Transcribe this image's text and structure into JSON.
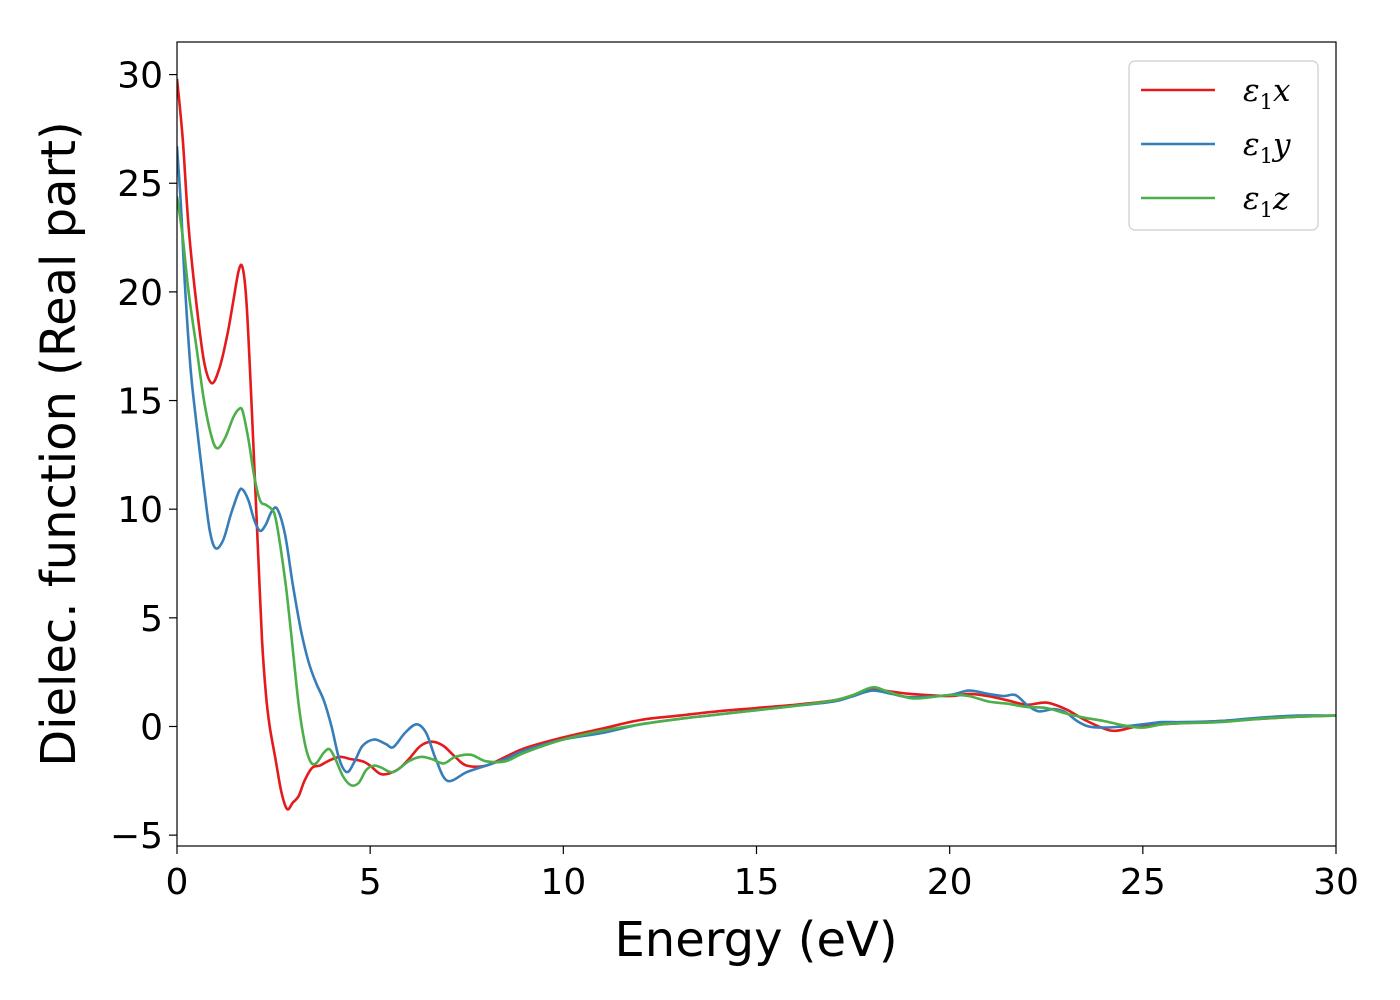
{
  "chart_data": {
    "type": "line",
    "xlabel": "Energy (eV)",
    "ylabel": "Dielec. function (Real part)",
    "xlim": [
      0,
      30
    ],
    "ylim": [
      -5.5,
      31.5
    ],
    "xticks": [
      0,
      5,
      10,
      15,
      20,
      25,
      30
    ],
    "yticks": [
      -5,
      0,
      5,
      10,
      15,
      20,
      25,
      30
    ],
    "xtick_labels": [
      "0",
      "5",
      "10",
      "15",
      "20",
      "25",
      "30"
    ],
    "ytick_labels": [
      "−5",
      "0",
      "5",
      "10",
      "15",
      "20",
      "25",
      "30"
    ],
    "grid": false,
    "legend_position": "top-right",
    "series": [
      {
        "name": "ε₁x",
        "legend": {
          "symbol": "ε",
          "sub": "1",
          "suffix": "x"
        },
        "color": "#e41a1c",
        "points": [
          [
            0,
            29.8
          ],
          [
            0.15,
            27.0
          ],
          [
            0.3,
            23.0
          ],
          [
            0.5,
            19.5
          ],
          [
            0.7,
            16.8
          ],
          [
            0.9,
            15.8
          ],
          [
            1.1,
            16.5
          ],
          [
            1.3,
            18.0
          ],
          [
            1.45,
            19.5
          ],
          [
            1.6,
            21.0
          ],
          [
            1.7,
            21.1
          ],
          [
            1.8,
            19.5
          ],
          [
            1.9,
            16.0
          ],
          [
            2.0,
            12.0
          ],
          [
            2.1,
            8.0
          ],
          [
            2.2,
            4.0
          ],
          [
            2.3,
            1.5
          ],
          [
            2.4,
            0.0
          ],
          [
            2.55,
            -1.5
          ],
          [
            2.7,
            -3.0
          ],
          [
            2.85,
            -3.8
          ],
          [
            3.0,
            -3.5
          ],
          [
            3.15,
            -3.2
          ],
          [
            3.3,
            -2.5
          ],
          [
            3.5,
            -1.9
          ],
          [
            3.7,
            -1.8
          ],
          [
            3.9,
            -1.6
          ],
          [
            4.2,
            -1.4
          ],
          [
            4.5,
            -1.5
          ],
          [
            4.8,
            -1.6
          ],
          [
            5.0,
            -1.8
          ],
          [
            5.3,
            -2.2
          ],
          [
            5.7,
            -2.0
          ],
          [
            6.0,
            -1.5
          ],
          [
            6.3,
            -0.9
          ],
          [
            6.6,
            -0.7
          ],
          [
            6.9,
            -0.9
          ],
          [
            7.2,
            -1.4
          ],
          [
            7.5,
            -1.8
          ],
          [
            8.0,
            -1.8
          ],
          [
            8.5,
            -1.4
          ],
          [
            9.0,
            -1.0
          ],
          [
            10.0,
            -0.5
          ],
          [
            11.0,
            -0.1
          ],
          [
            12.0,
            0.3
          ],
          [
            13.0,
            0.5
          ],
          [
            14.0,
            0.7
          ],
          [
            15.0,
            0.85
          ],
          [
            16.0,
            1.0
          ],
          [
            17.0,
            1.2
          ],
          [
            17.5,
            1.4
          ],
          [
            18.0,
            1.7
          ],
          [
            18.5,
            1.6
          ],
          [
            19.0,
            1.5
          ],
          [
            20.0,
            1.4
          ],
          [
            20.5,
            1.5
          ],
          [
            21.0,
            1.4
          ],
          [
            21.5,
            1.2
          ],
          [
            22.0,
            1.0
          ],
          [
            22.5,
            1.1
          ],
          [
            23.0,
            0.8
          ],
          [
            23.5,
            0.3
          ],
          [
            24.0,
            -0.1
          ],
          [
            24.3,
            -0.2
          ],
          [
            24.7,
            -0.05
          ],
          [
            25.0,
            0.05
          ],
          [
            26.0,
            0.15
          ],
          [
            27.0,
            0.25
          ],
          [
            28.0,
            0.35
          ],
          [
            29.0,
            0.45
          ],
          [
            30.0,
            0.5
          ]
        ]
      },
      {
        "name": "ε₁y",
        "legend": {
          "symbol": "ε",
          "sub": "1",
          "suffix": "y"
        },
        "color": "#377eb8",
        "points": [
          [
            0,
            26.7
          ],
          [
            0.1,
            24.0
          ],
          [
            0.2,
            20.5
          ],
          [
            0.35,
            16.5
          ],
          [
            0.5,
            14.0
          ],
          [
            0.7,
            11.0
          ],
          [
            0.85,
            9.0
          ],
          [
            1.0,
            8.2
          ],
          [
            1.2,
            8.6
          ],
          [
            1.4,
            9.8
          ],
          [
            1.6,
            10.8
          ],
          [
            1.7,
            10.9
          ],
          [
            1.85,
            10.4
          ],
          [
            2.0,
            9.5
          ],
          [
            2.15,
            9.0
          ],
          [
            2.3,
            9.3
          ],
          [
            2.45,
            9.9
          ],
          [
            2.6,
            10.0
          ],
          [
            2.8,
            8.8
          ],
          [
            3.0,
            6.5
          ],
          [
            3.2,
            4.5
          ],
          [
            3.4,
            3.0
          ],
          [
            3.6,
            2.0
          ],
          [
            3.8,
            1.2
          ],
          [
            4.0,
            0.0
          ],
          [
            4.2,
            -1.5
          ],
          [
            4.4,
            -2.1
          ],
          [
            4.6,
            -1.6
          ],
          [
            4.8,
            -0.9
          ],
          [
            5.1,
            -0.6
          ],
          [
            5.4,
            -0.8
          ],
          [
            5.6,
            -0.95
          ],
          [
            5.9,
            -0.3
          ],
          [
            6.2,
            0.1
          ],
          [
            6.45,
            -0.3
          ],
          [
            6.7,
            -1.5
          ],
          [
            7.0,
            -2.5
          ],
          [
            7.5,
            -2.1
          ],
          [
            8.0,
            -1.8
          ],
          [
            8.5,
            -1.5
          ],
          [
            9.0,
            -1.1
          ],
          [
            10.0,
            -0.6
          ],
          [
            11.0,
            -0.3
          ],
          [
            12.0,
            0.1
          ],
          [
            13.0,
            0.35
          ],
          [
            14.0,
            0.55
          ],
          [
            15.0,
            0.75
          ],
          [
            16.0,
            0.95
          ],
          [
            17.0,
            1.15
          ],
          [
            17.5,
            1.4
          ],
          [
            18.0,
            1.65
          ],
          [
            18.5,
            1.5
          ],
          [
            19.0,
            1.35
          ],
          [
            20.0,
            1.45
          ],
          [
            20.5,
            1.65
          ],
          [
            21.0,
            1.5
          ],
          [
            21.4,
            1.4
          ],
          [
            21.7,
            1.45
          ],
          [
            22.0,
            1.0
          ],
          [
            22.3,
            0.7
          ],
          [
            22.7,
            0.8
          ],
          [
            23.0,
            0.65
          ],
          [
            23.3,
            0.25
          ],
          [
            23.6,
            0.0
          ],
          [
            24.0,
            -0.05
          ],
          [
            24.5,
            0.0
          ],
          [
            25.0,
            0.1
          ],
          [
            25.5,
            0.2
          ],
          [
            26.0,
            0.2
          ],
          [
            27.0,
            0.25
          ],
          [
            28.0,
            0.4
          ],
          [
            29.0,
            0.5
          ],
          [
            30.0,
            0.5
          ]
        ]
      },
      {
        "name": "ε₁z",
        "legend": {
          "symbol": "ε",
          "sub": "1",
          "suffix": "z"
        },
        "color": "#4daf4a",
        "points": [
          [
            0,
            24.4
          ],
          [
            0.15,
            22.5
          ],
          [
            0.3,
            20.0
          ],
          [
            0.5,
            17.5
          ],
          [
            0.7,
            15.0
          ],
          [
            0.9,
            13.3
          ],
          [
            1.05,
            12.8
          ],
          [
            1.25,
            13.3
          ],
          [
            1.45,
            14.2
          ],
          [
            1.6,
            14.6
          ],
          [
            1.7,
            14.5
          ],
          [
            1.85,
            13.2
          ],
          [
            2.0,
            11.5
          ],
          [
            2.15,
            10.4
          ],
          [
            2.3,
            10.2
          ],
          [
            2.45,
            10.0
          ],
          [
            2.55,
            9.6
          ],
          [
            2.7,
            8.0
          ],
          [
            2.85,
            6.0
          ],
          [
            3.0,
            3.5
          ],
          [
            3.15,
            1.0
          ],
          [
            3.3,
            -0.7
          ],
          [
            3.45,
            -1.6
          ],
          [
            3.6,
            -1.7
          ],
          [
            3.8,
            -1.2
          ],
          [
            3.95,
            -1.05
          ],
          [
            4.1,
            -1.5
          ],
          [
            4.3,
            -2.3
          ],
          [
            4.5,
            -2.7
          ],
          [
            4.7,
            -2.6
          ],
          [
            4.9,
            -2.0
          ],
          [
            5.1,
            -1.8
          ],
          [
            5.3,
            -1.9
          ],
          [
            5.6,
            -2.1
          ],
          [
            6.0,
            -1.6
          ],
          [
            6.3,
            -1.4
          ],
          [
            6.6,
            -1.5
          ],
          [
            6.9,
            -1.7
          ],
          [
            7.2,
            -1.4
          ],
          [
            7.6,
            -1.3
          ],
          [
            8.0,
            -1.6
          ],
          [
            8.5,
            -1.6
          ],
          [
            9.0,
            -1.2
          ],
          [
            10.0,
            -0.6
          ],
          [
            11.0,
            -0.2
          ],
          [
            12.0,
            0.1
          ],
          [
            13.0,
            0.35
          ],
          [
            14.0,
            0.55
          ],
          [
            15.0,
            0.75
          ],
          [
            16.0,
            0.95
          ],
          [
            17.0,
            1.2
          ],
          [
            17.5,
            1.45
          ],
          [
            18.0,
            1.8
          ],
          [
            18.4,
            1.6
          ],
          [
            19.0,
            1.3
          ],
          [
            19.5,
            1.35
          ],
          [
            20.0,
            1.45
          ],
          [
            20.5,
            1.4
          ],
          [
            21.0,
            1.15
          ],
          [
            21.5,
            1.05
          ],
          [
            22.0,
            0.9
          ],
          [
            22.5,
            0.85
          ],
          [
            23.0,
            0.6
          ],
          [
            23.5,
            0.4
          ],
          [
            24.0,
            0.25
          ],
          [
            24.5,
            0.05
          ],
          [
            25.0,
            -0.05
          ],
          [
            25.5,
            0.1
          ],
          [
            26.0,
            0.15
          ],
          [
            27.0,
            0.2
          ],
          [
            28.0,
            0.35
          ],
          [
            29.0,
            0.45
          ],
          [
            30.0,
            0.5
          ]
        ]
      }
    ]
  }
}
